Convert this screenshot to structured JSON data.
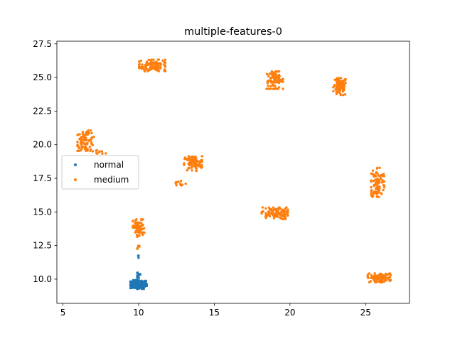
{
  "chart_data": {
    "type": "scatter",
    "title": "multiple-features-0",
    "xlabel": "",
    "ylabel": "",
    "xlim": [
      4.6,
      27.9
    ],
    "ylim": [
      8.2,
      27.7
    ],
    "xticks": [
      5,
      10,
      15,
      20,
      25
    ],
    "xtick_labels": [
      "5",
      "10",
      "15",
      "20",
      "25"
    ],
    "yticks": [
      10.0,
      12.5,
      15.0,
      17.5,
      20.0,
      22.5,
      25.0,
      27.5
    ],
    "ytick_labels": [
      "10.0",
      "12.5",
      "15.0",
      "17.5",
      "20.0",
      "22.5",
      "25.0",
      "27.5"
    ],
    "grid": false,
    "legend_position": "center-left",
    "series": [
      {
        "name": "normal",
        "color": "#1f77b4",
        "clusters": [
          {
            "center": [
              10.0,
              9.6
            ],
            "spread": [
              0.5,
              0.3
            ],
            "count": 140
          },
          {
            "center": [
              10.0,
              10.3
            ],
            "spread": [
              0.15,
              0.3
            ],
            "count": 14
          },
          {
            "center": [
              10.0,
              11.7
            ],
            "spread": [
              0.05,
              0.15
            ],
            "count": 3
          }
        ]
      },
      {
        "name": "medium",
        "color": "#ff7f0e",
        "clusters": [
          {
            "center": [
              10.9,
              25.9
            ],
            "spread": [
              0.8,
              0.4
            ],
            "count": 110
          },
          {
            "center": [
              19.0,
              24.8
            ],
            "spread": [
              0.5,
              0.6
            ],
            "count": 80
          },
          {
            "center": [
              23.3,
              24.3
            ],
            "spread": [
              0.4,
              0.6
            ],
            "count": 90
          },
          {
            "center": [
              6.5,
              20.3
            ],
            "spread": [
              0.5,
              0.7
            ],
            "count": 85
          },
          {
            "center": [
              7.4,
              19.5
            ],
            "spread": [
              0.4,
              0.15
            ],
            "count": 10
          },
          {
            "center": [
              13.6,
              18.6
            ],
            "spread": [
              0.55,
              0.5
            ],
            "count": 90
          },
          {
            "center": [
              12.7,
              17.1
            ],
            "spread": [
              0.4,
              0.25
            ],
            "count": 12
          },
          {
            "center": [
              25.8,
              17.2
            ],
            "spread": [
              0.4,
              1.0
            ],
            "count": 95
          },
          {
            "center": [
              19.0,
              14.9
            ],
            "spread": [
              0.8,
              0.4
            ],
            "count": 100
          },
          {
            "center": [
              10.0,
              13.8
            ],
            "spread": [
              0.35,
              0.6
            ],
            "count": 85
          },
          {
            "center": [
              10.0,
              12.4
            ],
            "spread": [
              0.08,
              0.2
            ],
            "count": 6
          },
          {
            "center": [
              25.9,
              10.1
            ],
            "spread": [
              0.7,
              0.3
            ],
            "count": 100
          }
        ]
      }
    ]
  }
}
